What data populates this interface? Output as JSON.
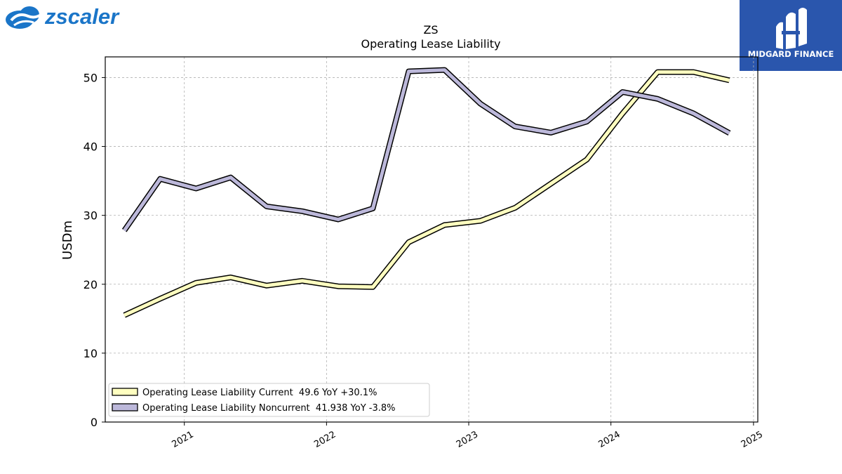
{
  "branding": {
    "left_logo_text": "zscaler",
    "left_logo_color": "#1a75c8",
    "right_logo_text": "MIDGARD FINANCE",
    "right_logo_bg": "#2a56ad"
  },
  "chart_data": {
    "type": "line",
    "title": "ZS",
    "subtitle": "Operating Lease Liability",
    "xlabel": "",
    "ylabel": "USDm",
    "ylim": [
      0,
      53
    ],
    "yticks": [
      0,
      10,
      20,
      30,
      40,
      50
    ],
    "xlim": [
      "2020-06-12",
      "2025-01-12"
    ],
    "xticks": [
      "2021",
      "2022",
      "2023",
      "2024",
      "2025"
    ],
    "grid": true,
    "legend_position": "lower-left",
    "x": [
      "2020-07-31",
      "2020-10-31",
      "2021-01-31",
      "2021-04-30",
      "2021-07-31",
      "2021-10-31",
      "2022-01-31",
      "2022-04-30",
      "2022-07-31",
      "2022-10-31",
      "2023-01-31",
      "2023-04-30",
      "2023-07-31",
      "2023-10-31",
      "2024-01-31",
      "2024-04-30",
      "2024-07-31",
      "2024-10-31"
    ],
    "series": [
      {
        "name": "Operating Lease Liability Current",
        "legend": "Operating Lease Liability Current  49.6 YoY +30.1%",
        "color": "#ffffc0",
        "values": [
          15.5,
          17.9,
          20.2,
          21.0,
          19.8,
          20.5,
          19.7,
          19.6,
          26.1,
          28.6,
          29.2,
          31.1,
          34.6,
          38.1,
          44.8,
          50.8,
          50.8,
          49.6
        ]
      },
      {
        "name": "Operating Lease Liability Noncurrent",
        "legend": "Operating Lease Liability Noncurrent  41.938 YoY -3.8%",
        "color": "#bcb8da",
        "values": [
          27.8,
          35.3,
          33.9,
          35.5,
          31.3,
          30.6,
          29.4,
          31.0,
          50.9,
          51.1,
          46.2,
          42.9,
          42.0,
          43.6,
          47.9,
          46.9,
          44.8,
          41.938
        ]
      }
    ]
  }
}
